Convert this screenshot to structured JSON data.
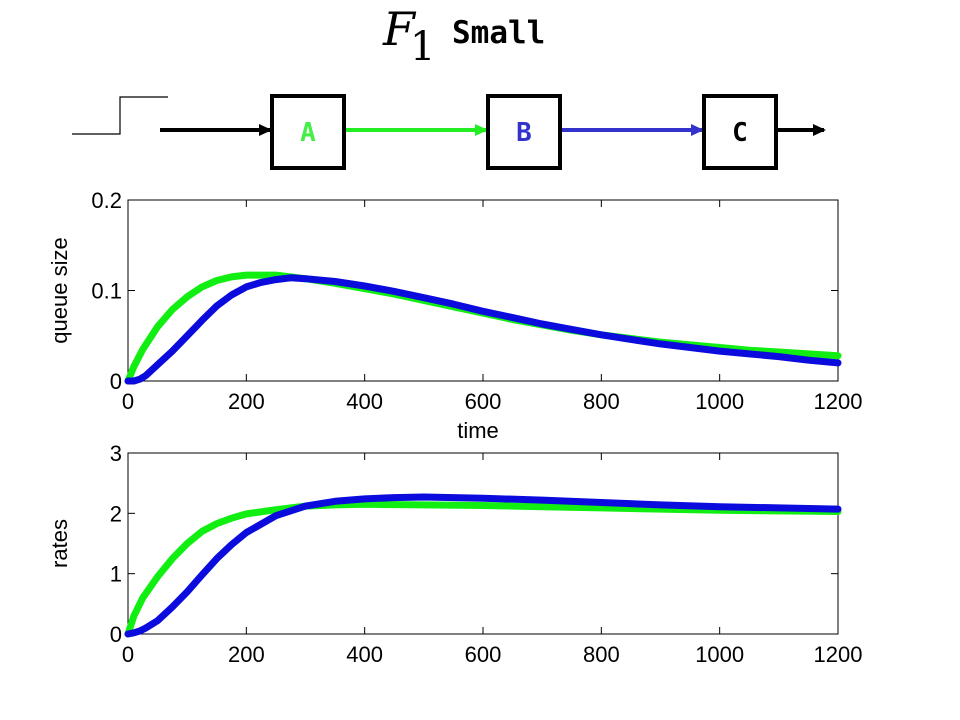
{
  "title": {
    "symbol": "F",
    "subscript": "1",
    "text": "Small"
  },
  "flow_diagram": {
    "nodes": [
      {
        "label": "A",
        "color": "#44ee44"
      },
      {
        "label": "B",
        "color": "#3333cc"
      },
      {
        "label": "C",
        "color": "#000000"
      }
    ],
    "edge_colors": {
      "input": "#000000",
      "a_to_b": "#22ee22",
      "b_to_c": "#3333cc",
      "output": "#000000"
    },
    "step_input_icon": "step-function-icon"
  },
  "colors": {
    "green": "#11ee11",
    "blue": "#0b0bdd"
  },
  "chart_data": [
    {
      "type": "line",
      "xlabel": "time",
      "ylabel": "queue size",
      "xlim": [
        0,
        1200
      ],
      "ylim": [
        0,
        0.2
      ],
      "xticks": [
        "0",
        "200",
        "400",
        "600",
        "800",
        "1000",
        "1200"
      ],
      "yticks": [
        "0",
        "0.1",
        "0.2"
      ],
      "grid": false,
      "series": [
        {
          "color": "#11ee11",
          "x": [
            0,
            10,
            25,
            50,
            75,
            100,
            125,
            150,
            175,
            200,
            250,
            300,
            350,
            400,
            450,
            500,
            550,
            600,
            650,
            700,
            750,
            800,
            850,
            900,
            950,
            1000,
            1050,
            1100,
            1150,
            1200
          ],
          "y": [
            0,
            0.016,
            0.035,
            0.06,
            0.079,
            0.093,
            0.104,
            0.111,
            0.115,
            0.117,
            0.117,
            0.113,
            0.108,
            0.102,
            0.096,
            0.089,
            0.082,
            0.075,
            0.068,
            0.062,
            0.056,
            0.051,
            0.047,
            0.043,
            0.04,
            0.037,
            0.034,
            0.032,
            0.03,
            0.028
          ]
        },
        {
          "color": "#0b0bdd",
          "x": [
            0,
            10,
            20,
            30,
            50,
            75,
            100,
            125,
            150,
            175,
            200,
            225,
            250,
            275,
            300,
            350,
            400,
            450,
            500,
            550,
            600,
            650,
            700,
            750,
            800,
            850,
            900,
            950,
            1000,
            1050,
            1100,
            1150,
            1200
          ],
          "y": [
            0,
            0,
            0.002,
            0.006,
            0.018,
            0.033,
            0.05,
            0.067,
            0.083,
            0.095,
            0.104,
            0.109,
            0.112,
            0.114,
            0.113,
            0.11,
            0.105,
            0.099,
            0.092,
            0.085,
            0.077,
            0.07,
            0.063,
            0.057,
            0.051,
            0.046,
            0.041,
            0.037,
            0.033,
            0.03,
            0.027,
            0.023,
            0.02
          ]
        }
      ]
    },
    {
      "type": "line",
      "xlabel": "",
      "ylabel": "rates",
      "xlim": [
        0,
        1200
      ],
      "ylim": [
        0,
        3
      ],
      "xticks": [
        "0",
        "200",
        "400",
        "600",
        "800",
        "1000",
        "1200"
      ],
      "yticks": [
        "0",
        "1",
        "2",
        "3"
      ],
      "grid": false,
      "series": [
        {
          "color": "#11ee11",
          "x": [
            0,
            10,
            25,
            50,
            75,
            100,
            125,
            150,
            175,
            200,
            250,
            300,
            350,
            400,
            500,
            600,
            700,
            800,
            900,
            1000,
            1100,
            1200
          ],
          "y": [
            0,
            0.3,
            0.6,
            0.95,
            1.25,
            1.5,
            1.7,
            1.83,
            1.92,
            1.99,
            2.06,
            2.12,
            2.14,
            2.15,
            2.14,
            2.13,
            2.11,
            2.09,
            2.07,
            2.05,
            2.04,
            2.03
          ]
        },
        {
          "color": "#0b0bdd",
          "x": [
            0,
            10,
            20,
            30,
            50,
            75,
            100,
            125,
            150,
            175,
            200,
            250,
            300,
            350,
            400,
            450,
            500,
            550,
            600,
            700,
            800,
            900,
            1000,
            1100,
            1200
          ],
          "y": [
            0,
            0.02,
            0.05,
            0.1,
            0.22,
            0.45,
            0.7,
            0.98,
            1.25,
            1.48,
            1.68,
            1.96,
            2.12,
            2.2,
            2.24,
            2.26,
            2.27,
            2.26,
            2.25,
            2.22,
            2.18,
            2.14,
            2.11,
            2.09,
            2.07
          ]
        }
      ]
    }
  ]
}
